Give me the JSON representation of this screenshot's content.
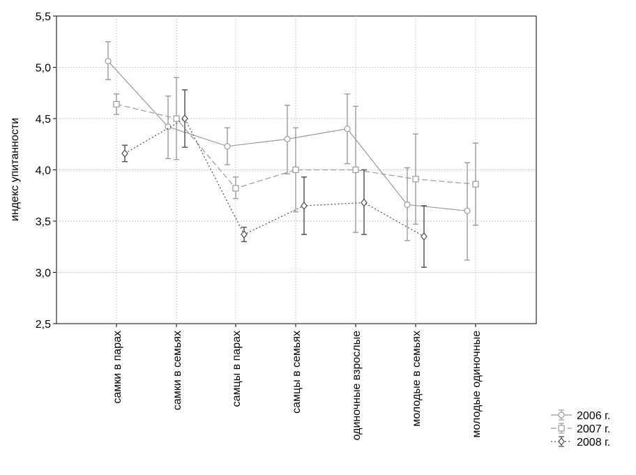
{
  "chart_data": {
    "type": "line",
    "xlabel": "",
    "ylabel": "индекс упитанности",
    "ylim": [
      2.5,
      5.5
    ],
    "yticks": [
      "2,5",
      "3,0",
      "3,5",
      "4,0",
      "4,5",
      "5,0",
      "5,5"
    ],
    "grid": true,
    "legend_position": "bottom-right",
    "categories": [
      "самки в парах",
      "самки в семьях",
      "самцы в парах",
      "самцы в семьях",
      "одиночные взрослые",
      "молодые в семьях",
      "молодые одиночные"
    ],
    "series": [
      {
        "name": "2006 г.",
        "marker": "circle",
        "line": "solid",
        "color": "#9a9a9a",
        "values": [
          5.06,
          4.42,
          4.23,
          4.3,
          4.4,
          3.66,
          3.6
        ],
        "error_low": [
          4.88,
          4.11,
          4.05,
          3.96,
          4.06,
          3.31,
          3.12
        ],
        "error_high": [
          5.25,
          4.72,
          4.41,
          4.63,
          4.74,
          4.02,
          4.07
        ]
      },
      {
        "name": "2007 г.",
        "marker": "square",
        "line": "dashed",
        "color": "#9a9a9a",
        "values": [
          4.64,
          4.5,
          3.82,
          4.0,
          4.0,
          3.91,
          3.86
        ],
        "error_low": [
          4.54,
          4.1,
          3.72,
          3.59,
          3.39,
          3.47,
          3.46
        ],
        "error_high": [
          4.74,
          4.9,
          3.93,
          4.41,
          4.62,
          4.35,
          4.26
        ]
      },
      {
        "name": "2008 г.",
        "marker": "diamond",
        "line": "dotted",
        "color": "#4a4a4a",
        "values": [
          4.16,
          4.5,
          3.37,
          3.65,
          3.68,
          3.35,
          null
        ],
        "error_low": [
          4.08,
          4.22,
          3.3,
          3.37,
          3.37,
          3.05,
          null
        ],
        "error_high": [
          4.24,
          4.78,
          3.44,
          3.93,
          4.0,
          3.65,
          null
        ]
      }
    ]
  }
}
